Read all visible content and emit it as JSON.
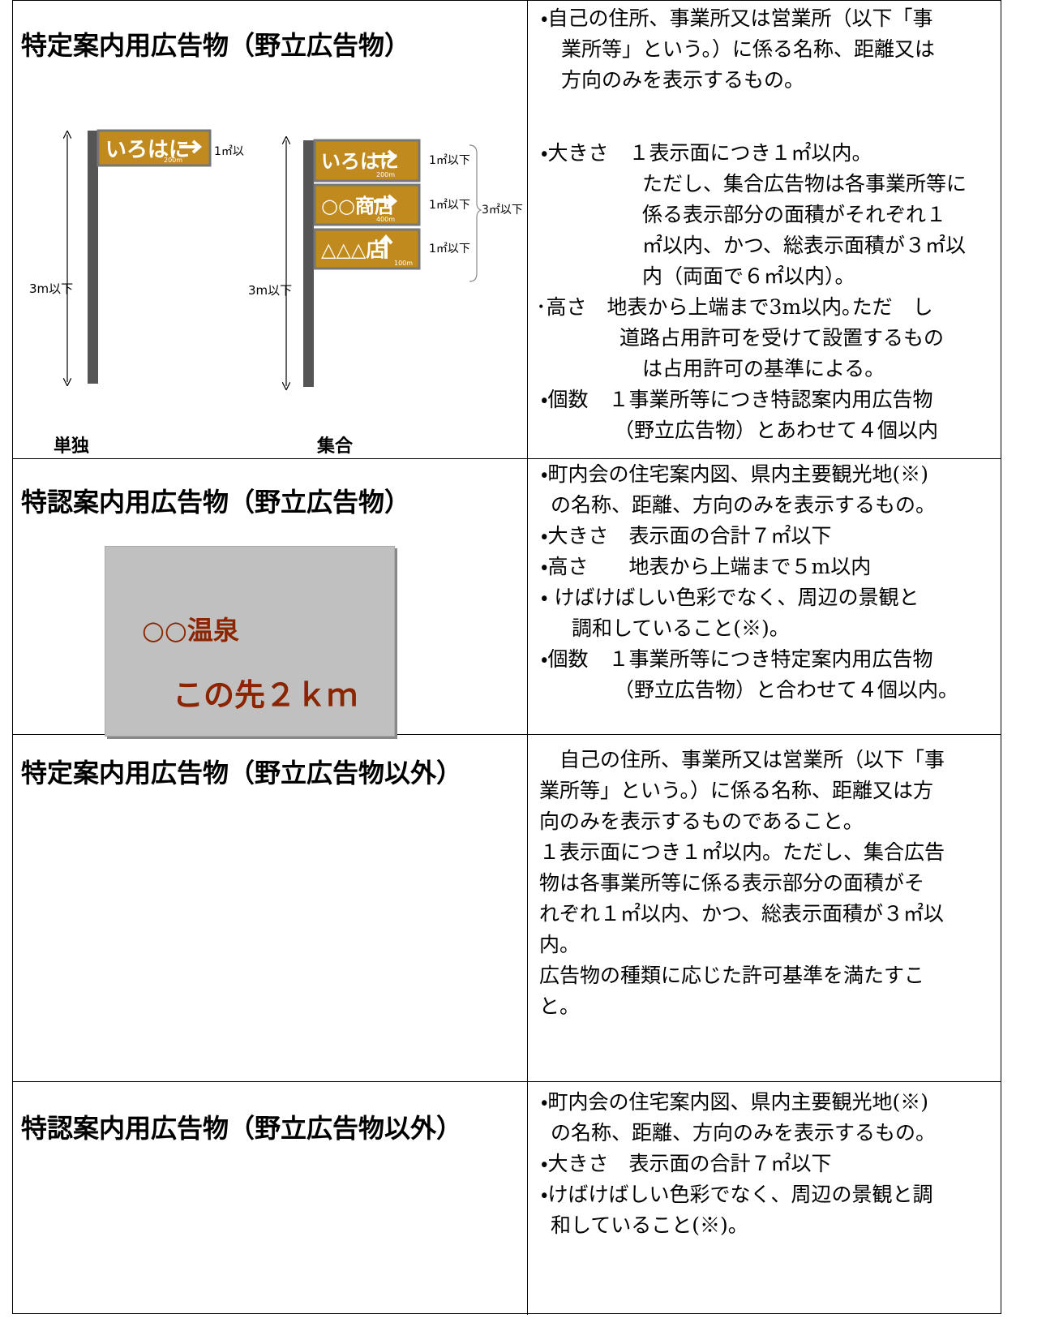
{
  "rows": [
    {
      "title": "特定案内用広告物（野立広告物）",
      "figure": {
        "single": {
          "sign": "いろはに",
          "distance": "200m",
          "area": "1㎡以",
          "height": "3m以下",
          "caption": "単独"
        },
        "group": {
          "signs": [
            {
              "name": "いろはに",
              "distance": "200m",
              "area": "1㎡以下"
            },
            {
              "name": "○○商店",
              "distance": "400m",
              "area": "1㎡以下"
            },
            {
              "name": "△△△店",
              "distance": "100m",
              "area": "1㎡以下"
            }
          ],
          "total": "3㎡以下",
          "height": "3m以下",
          "caption": "集合"
        }
      },
      "text": [
        "・自己の住所、事業所又は営業所（以下「事",
        "業所等」という。）に係る名称、距離又は",
        "方向のみを表示するもの。",
        "・大きさ　１表示面につき１㎡以内。",
        "ただし、集合広告物は各事業所等に",
        "係る表示部分の面積がそれぞれ１",
        "㎡以内、かつ、総表示面積が３㎡以",
        "内（両面で６㎡以内）。",
        "･高さ　地表から上端まで3m以内｡ただ　し",
        "道路占用許可を受けて設置するもの",
        "は占用許可の基準による。",
        "・個数　１事業所等につき特認案内用広告物",
        "（野立広告物）とあわせて４個以内"
      ]
    },
    {
      "title": "特認案内用広告物（野立広告物）",
      "figure": {
        "name": "○○温泉",
        "direction": "この先２ｋｍ"
      },
      "text": [
        "・町内会の住宅案内図、県内主要観光地(※)",
        "の名称、距離、方向のみを表示するもの。",
        "・大きさ　表示面の合計７㎡以下",
        "・高さ　　地表から上端まで５m以内",
        "・ けばけばしい色彩でなく、周辺の景観と",
        "調和していること(※)。",
        "・個数　１事業所等につき特定案内用広告物",
        "（野立広告物）と合わせて４個以内。"
      ]
    },
    {
      "title": "特定案内用広告物（野立広告物以外）",
      "text": [
        "　自己の住所、事業所又は営業所（以下「事",
        "業所等」という。）に係る名称、距離又は方",
        "向のみを表示するものであること。",
        "１表示面につき１㎡以内。ただし、集合広告",
        "物は各事業所等に係る表示部分の面積がそ",
        "れぞれ１㎡以内、かつ、総表示面積が３㎡以",
        "内。",
        "広告物の種類に応じた許可基準を満たすこ",
        "と。"
      ]
    },
    {
      "title": "特認案内用広告物（野立広告物以外）",
      "text": [
        "・町内会の住宅案内図、県内主要観光地(※)",
        "の名称、距離、方向のみを表示するもの。",
        "・大きさ　表示面の合計７㎡以下",
        "・けばけばしい色彩でなく、周辺の景観と調",
        "和していること(※)。"
      ]
    }
  ]
}
